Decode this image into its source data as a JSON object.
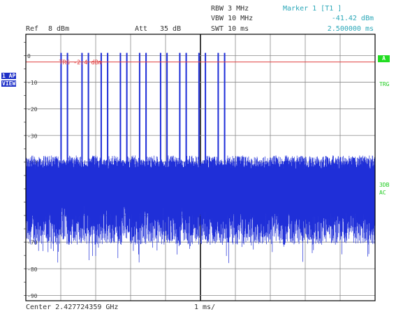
{
  "header": {
    "ref_label": "Ref",
    "ref_value": "8 dBm",
    "att_label": "Att",
    "att_value": "35 dB",
    "rbw": "RBW 3 MHz",
    "vbw": "VBW 10 MHz",
    "swt": "SWT 10 ms",
    "marker_title": "Marker 1 [T1 ]",
    "marker_level": "-41.42 dBm",
    "marker_time": "2.500000 ms"
  },
  "side": {
    "left_badge_1": "1 AP",
    "left_badge_2": "VIEW",
    "right_badge_a": "A",
    "right_trg": "TRG",
    "right_3db": "3DB",
    "right_ac": "AC"
  },
  "footer": {
    "center": "Center 2.427724359 GHz",
    "span": "1 ms/"
  },
  "chart_data": {
    "type": "line",
    "xlabel": "",
    "ylabel": "",
    "x_unit": "ms",
    "xlim": [
      0,
      10
    ],
    "ylim": [
      -92,
      8
    ],
    "y_ticks": [
      0,
      -10,
      -20,
      -30,
      -40,
      -50,
      -60,
      -70,
      -80,
      -90
    ],
    "y_tick_labels": [
      "0",
      "-10",
      "-20",
      "-30",
      "-40",
      "-50",
      "-60",
      "-70",
      "-80",
      "-90"
    ],
    "trigger_level": -2.4,
    "trigger_label": "TRG -2.4 dBm",
    "marker": {
      "x": 2.5,
      "y": -41.42
    },
    "noise_floor_range": [
      -71,
      -39
    ],
    "bursts": [
      {
        "start": 1.0,
        "end": 1.2,
        "level": 1
      },
      {
        "start": 1.6,
        "end": 1.8,
        "level": 1
      },
      {
        "start": 2.15,
        "end": 2.35,
        "level": 1
      },
      {
        "start": 2.7,
        "end": 2.9,
        "level": 1
      },
      {
        "start": 3.25,
        "end": 3.45,
        "level": 1
      },
      {
        "start": 3.85,
        "end": 4.05,
        "level": 1
      },
      {
        "start": 4.4,
        "end": 4.6,
        "level": 1
      },
      {
        "start": 4.95,
        "end": 5.15,
        "level": 1
      },
      {
        "start": 5.5,
        "end": 5.7,
        "level": 1
      }
    ],
    "colors": {
      "trace": "#1f2fd8",
      "trigger_line": "#e14040",
      "grid": "#8a8a8a",
      "frame": "#000000"
    }
  }
}
